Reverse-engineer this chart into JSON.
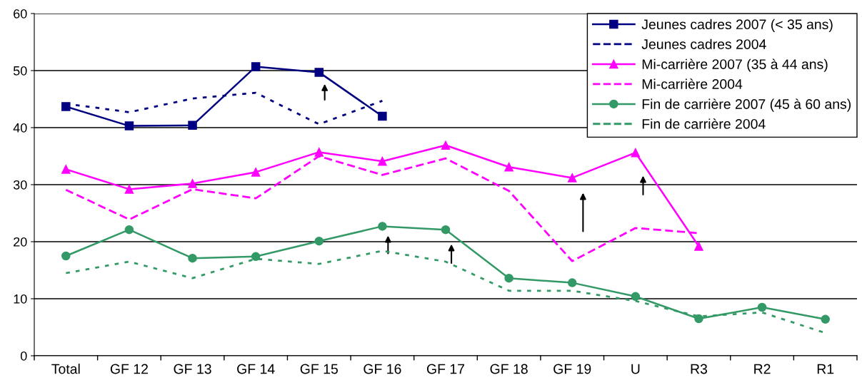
{
  "chart_data": {
    "type": "line",
    "categories": [
      "Total",
      "GF 12",
      "GF 13",
      "GF 14",
      "GF 15",
      "GF 16",
      "GF 17",
      "GF 18",
      "GF 19",
      "U",
      "R3",
      "R2",
      "R1"
    ],
    "series": [
      {
        "name": "Jeunes cadres 2007 (< 35 ans)",
        "color": "#000080",
        "marker": "square",
        "line_style": "solid",
        "values": [
          43.7,
          40.3,
          40.4,
          50.7,
          49.7,
          42.0,
          null,
          null,
          null,
          null,
          null,
          null,
          null
        ]
      },
      {
        "name": "Jeunes cadres 2004",
        "color": "#000080",
        "marker": "none",
        "line_style": "dotted",
        "values": [
          44.2,
          42.7,
          45.1,
          46.1,
          40.6,
          44.7,
          null,
          null,
          null,
          null,
          null,
          null,
          null
        ]
      },
      {
        "name": "Mi-carrière 2007 (35 à 44 ans)",
        "color": "#ff00ff",
        "marker": "triangle",
        "line_style": "solid",
        "values": [
          32.7,
          29.2,
          30.2,
          32.2,
          35.7,
          34.1,
          36.9,
          33.1,
          31.2,
          35.6,
          19.2,
          null,
          null
        ]
      },
      {
        "name": "Mi-carrière 2004",
        "color": "#ff00ff",
        "marker": "none",
        "line_style": "dashed",
        "values": [
          29.1,
          23.9,
          29.2,
          27.6,
          35.0,
          31.7,
          34.6,
          28.9,
          16.6,
          22.4,
          21.5,
          null,
          null
        ]
      },
      {
        "name": "Fin de carrière 2007 (45 à 60 ans)",
        "color": "#339966",
        "marker": "circle",
        "line_style": "solid",
        "values": [
          17.5,
          22.1,
          17.1,
          17.4,
          20.1,
          22.7,
          22.1,
          13.6,
          12.8,
          10.4,
          6.5,
          8.5,
          6.4
        ]
      },
      {
        "name": "Fin de carrière 2004",
        "color": "#339966",
        "marker": "none",
        "line_style": "dotted",
        "values": [
          14.5,
          16.5,
          13.6,
          17.0,
          16.1,
          18.4,
          16.5,
          11.4,
          11.4,
          9.6,
          6.9,
          7.6,
          4.0
        ]
      }
    ],
    "ylim": [
      0,
      60
    ],
    "yticks": [
      0,
      10,
      20,
      30,
      40,
      50,
      60
    ],
    "grid": "y",
    "legend": "top right"
  }
}
